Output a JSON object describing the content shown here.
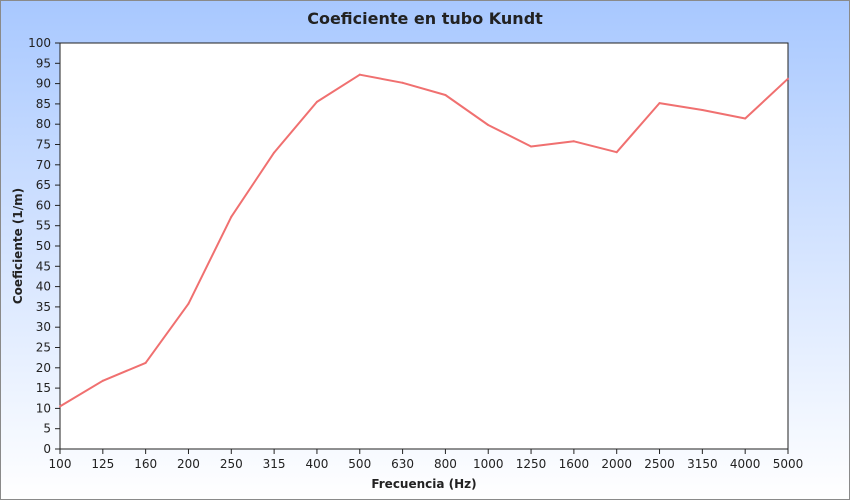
{
  "chart_data": {
    "type": "line",
    "title": "Coeficiente en tubo Kundt",
    "xlabel": "Frecuencia (Hz)",
    "ylabel": "Coeficiente (1/m)",
    "categories": [
      "100",
      "125",
      "160",
      "200",
      "250",
      "315",
      "400",
      "500",
      "630",
      "800",
      "1000",
      "1250",
      "1600",
      "2000",
      "2500",
      "3150",
      "4000",
      "5000"
    ],
    "series": [
      {
        "values": [
          10.5,
          16.8,
          21.2,
          35.8,
          57.2,
          73.0,
          85.5,
          92.2,
          90.2,
          87.2,
          79.8,
          74.5,
          75.8,
          73.1,
          85.2,
          83.5,
          81.4,
          91.2
        ],
        "color": "#f07070"
      }
    ],
    "ylim": [
      0,
      100
    ],
    "ytick_step": 5,
    "grid": false,
    "plot_background": "#ffffff",
    "background_gradient": [
      "#a8c8ff",
      "#ffffff"
    ]
  }
}
